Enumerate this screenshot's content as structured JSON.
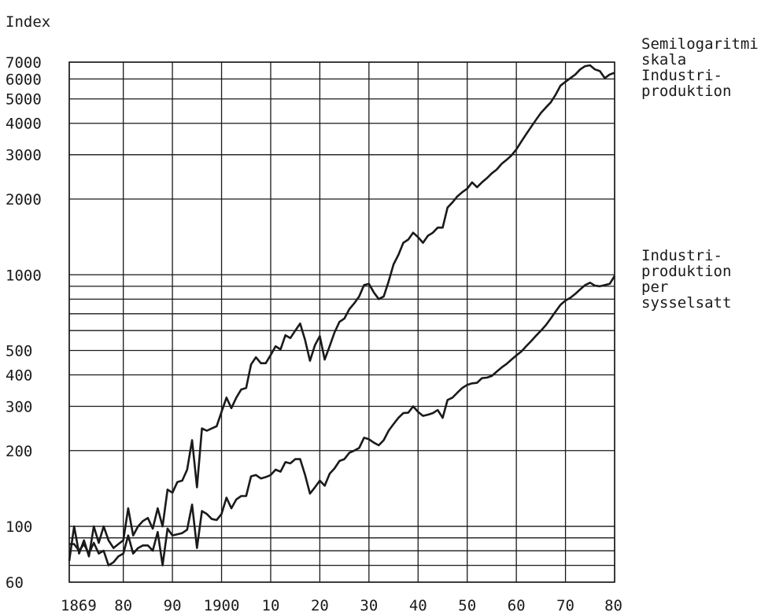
{
  "chart_data": {
    "type": "line",
    "title": "",
    "xlabel": "",
    "ylabel": "Index",
    "y_scale": "log",
    "ylim": [
      60,
      7000
    ],
    "xlim": [
      1869,
      1980
    ],
    "x_tick_labels": [
      "1869",
      "80",
      "90",
      "1900",
      "10",
      "20",
      "30",
      "40",
      "50",
      "60",
      "70",
      "80"
    ],
    "x_tick_values": [
      1869,
      1880,
      1890,
      1900,
      1910,
      1920,
      1930,
      1940,
      1950,
      1960,
      1970,
      1980
    ],
    "y_tick_labels": [
      "60",
      "100",
      "200",
      "300",
      "400",
      "500",
      "1000",
      "2000",
      "3000",
      "4000",
      "5000",
      "6000",
      "7000"
    ],
    "y_tick_values": [
      60,
      100,
      200,
      300,
      400,
      500,
      1000,
      2000,
      3000,
      4000,
      5000,
      6000,
      7000
    ],
    "y_gridlines": [
      60,
      70,
      80,
      90,
      100,
      200,
      300,
      400,
      500,
      600,
      700,
      800,
      900,
      1000,
      2000,
      3000,
      4000,
      5000,
      6000,
      7000
    ],
    "grid": true,
    "series": [
      {
        "name": "Semilogaritmi skala Industri-produktion",
        "label_lines": [
          "Semilogaritmi",
          "skala",
          "Industri-",
          "produktion"
        ],
        "color": "#1a1a1a",
        "points": [
          [
            1869,
            73
          ],
          [
            1870,
            100
          ],
          [
            1871,
            78
          ],
          [
            1872,
            88
          ],
          [
            1873,
            76
          ],
          [
            1874,
            100
          ],
          [
            1875,
            86
          ],
          [
            1876,
            100
          ],
          [
            1877,
            88
          ],
          [
            1878,
            82
          ],
          [
            1879,
            85
          ],
          [
            1880,
            88
          ],
          [
            1881,
            118
          ],
          [
            1882,
            92
          ],
          [
            1883,
            100
          ],
          [
            1884,
            105
          ],
          [
            1885,
            108
          ],
          [
            1886,
            98
          ],
          [
            1887,
            118
          ],
          [
            1888,
            100
          ],
          [
            1889,
            140
          ],
          [
            1890,
            136
          ],
          [
            1891,
            150
          ],
          [
            1892,
            152
          ],
          [
            1893,
            168
          ],
          [
            1894,
            220
          ],
          [
            1895,
            143
          ],
          [
            1896,
            245
          ],
          [
            1897,
            240
          ],
          [
            1898,
            245
          ],
          [
            1899,
            250
          ],
          [
            1900,
            285
          ],
          [
            1901,
            325
          ],
          [
            1902,
            295
          ],
          [
            1903,
            325
          ],
          [
            1904,
            350
          ],
          [
            1905,
            355
          ],
          [
            1906,
            440
          ],
          [
            1907,
            470
          ],
          [
            1908,
            445
          ],
          [
            1909,
            445
          ],
          [
            1910,
            480
          ],
          [
            1911,
            520
          ],
          [
            1912,
            505
          ],
          [
            1913,
            575
          ],
          [
            1914,
            560
          ],
          [
            1915,
            600
          ],
          [
            1916,
            640
          ],
          [
            1917,
            550
          ],
          [
            1918,
            455
          ],
          [
            1919,
            525
          ],
          [
            1920,
            570
          ],
          [
            1921,
            460
          ],
          [
            1922,
            520
          ],
          [
            1923,
            590
          ],
          [
            1924,
            650
          ],
          [
            1925,
            670
          ],
          [
            1926,
            730
          ],
          [
            1927,
            770
          ],
          [
            1928,
            820
          ],
          [
            1929,
            910
          ],
          [
            1930,
            920
          ],
          [
            1931,
            850
          ],
          [
            1932,
            800
          ],
          [
            1933,
            820
          ],
          [
            1934,
            940
          ],
          [
            1935,
            1100
          ],
          [
            1936,
            1200
          ],
          [
            1937,
            1340
          ],
          [
            1938,
            1380
          ],
          [
            1939,
            1470
          ],
          [
            1940,
            1410
          ],
          [
            1941,
            1340
          ],
          [
            1942,
            1430
          ],
          [
            1943,
            1470
          ],
          [
            1944,
            1540
          ],
          [
            1945,
            1540
          ],
          [
            1946,
            1850
          ],
          [
            1947,
            1940
          ],
          [
            1948,
            2050
          ],
          [
            1949,
            2130
          ],
          [
            1950,
            2200
          ],
          [
            1951,
            2330
          ],
          [
            1952,
            2230
          ],
          [
            1953,
            2330
          ],
          [
            1954,
            2420
          ],
          [
            1955,
            2530
          ],
          [
            1956,
            2620
          ],
          [
            1957,
            2760
          ],
          [
            1958,
            2860
          ],
          [
            1959,
            2980
          ],
          [
            1960,
            3150
          ],
          [
            1961,
            3380
          ],
          [
            1962,
            3620
          ],
          [
            1963,
            3870
          ],
          [
            1964,
            4130
          ],
          [
            1965,
            4400
          ],
          [
            1966,
            4620
          ],
          [
            1967,
            4840
          ],
          [
            1968,
            5200
          ],
          [
            1969,
            5650
          ],
          [
            1970,
            5850
          ],
          [
            1971,
            6050
          ],
          [
            1972,
            6250
          ],
          [
            1973,
            6550
          ],
          [
            1974,
            6750
          ],
          [
            1975,
            6800
          ],
          [
            1976,
            6550
          ],
          [
            1977,
            6450
          ],
          [
            1978,
            6050
          ],
          [
            1979,
            6250
          ],
          [
            1980,
            6350
          ]
        ]
      },
      {
        "name": "Industri-produktion per sysselsatt",
        "label_lines": [
          "Industri-",
          "produktion",
          "per",
          "sysselsatt"
        ],
        "color": "#1a1a1a",
        "points": [
          [
            1869,
            85
          ],
          [
            1870,
            85
          ],
          [
            1871,
            80
          ],
          [
            1872,
            85
          ],
          [
            1873,
            78
          ],
          [
            1874,
            86
          ],
          [
            1875,
            78
          ],
          [
            1876,
            80
          ],
          [
            1877,
            70
          ],
          [
            1878,
            72
          ],
          [
            1879,
            76
          ],
          [
            1880,
            78
          ],
          [
            1881,
            92
          ],
          [
            1882,
            78
          ],
          [
            1883,
            82
          ],
          [
            1884,
            84
          ],
          [
            1885,
            84
          ],
          [
            1886,
            80
          ],
          [
            1887,
            95
          ],
          [
            1888,
            70
          ],
          [
            1889,
            98
          ],
          [
            1890,
            92
          ],
          [
            1891,
            93
          ],
          [
            1892,
            94
          ],
          [
            1893,
            97
          ],
          [
            1894,
            122
          ],
          [
            1895,
            82
          ],
          [
            1896,
            115
          ],
          [
            1897,
            112
          ],
          [
            1898,
            107
          ],
          [
            1899,
            106
          ],
          [
            1900,
            112
          ],
          [
            1901,
            130
          ],
          [
            1902,
            118
          ],
          [
            1903,
            128
          ],
          [
            1904,
            132
          ],
          [
            1905,
            132
          ],
          [
            1906,
            158
          ],
          [
            1907,
            160
          ],
          [
            1908,
            155
          ],
          [
            1909,
            157
          ],
          [
            1910,
            160
          ],
          [
            1911,
            168
          ],
          [
            1912,
            165
          ],
          [
            1913,
            180
          ],
          [
            1914,
            178
          ],
          [
            1915,
            185
          ],
          [
            1916,
            185
          ],
          [
            1917,
            160
          ],
          [
            1918,
            135
          ],
          [
            1919,
            143
          ],
          [
            1920,
            152
          ],
          [
            1921,
            145
          ],
          [
            1922,
            162
          ],
          [
            1923,
            170
          ],
          [
            1924,
            182
          ],
          [
            1925,
            185
          ],
          [
            1926,
            196
          ],
          [
            1927,
            200
          ],
          [
            1928,
            205
          ],
          [
            1929,
            225
          ],
          [
            1930,
            222
          ],
          [
            1931,
            215
          ],
          [
            1932,
            210
          ],
          [
            1933,
            220
          ],
          [
            1934,
            240
          ],
          [
            1935,
            255
          ],
          [
            1936,
            270
          ],
          [
            1937,
            282
          ],
          [
            1938,
            283
          ],
          [
            1939,
            300
          ],
          [
            1940,
            285
          ],
          [
            1941,
            275
          ],
          [
            1942,
            278
          ],
          [
            1943,
            282
          ],
          [
            1944,
            290
          ],
          [
            1945,
            270
          ],
          [
            1946,
            318
          ],
          [
            1947,
            325
          ],
          [
            1948,
            340
          ],
          [
            1949,
            355
          ],
          [
            1950,
            365
          ],
          [
            1951,
            370
          ],
          [
            1952,
            372
          ],
          [
            1953,
            388
          ],
          [
            1954,
            390
          ],
          [
            1955,
            396
          ],
          [
            1956,
            412
          ],
          [
            1957,
            428
          ],
          [
            1958,
            442
          ],
          [
            1959,
            460
          ],
          [
            1960,
            478
          ],
          [
            1961,
            495
          ],
          [
            1962,
            520
          ],
          [
            1963,
            545
          ],
          [
            1964,
            572
          ],
          [
            1965,
            600
          ],
          [
            1966,
            630
          ],
          [
            1967,
            670
          ],
          [
            1968,
            715
          ],
          [
            1969,
            760
          ],
          [
            1970,
            790
          ],
          [
            1971,
            810
          ],
          [
            1972,
            840
          ],
          [
            1973,
            875
          ],
          [
            1974,
            910
          ],
          [
            1975,
            930
          ],
          [
            1976,
            905
          ],
          [
            1977,
            900
          ],
          [
            1978,
            910
          ],
          [
            1979,
            920
          ],
          [
            1980,
            990
          ]
        ]
      }
    ]
  }
}
